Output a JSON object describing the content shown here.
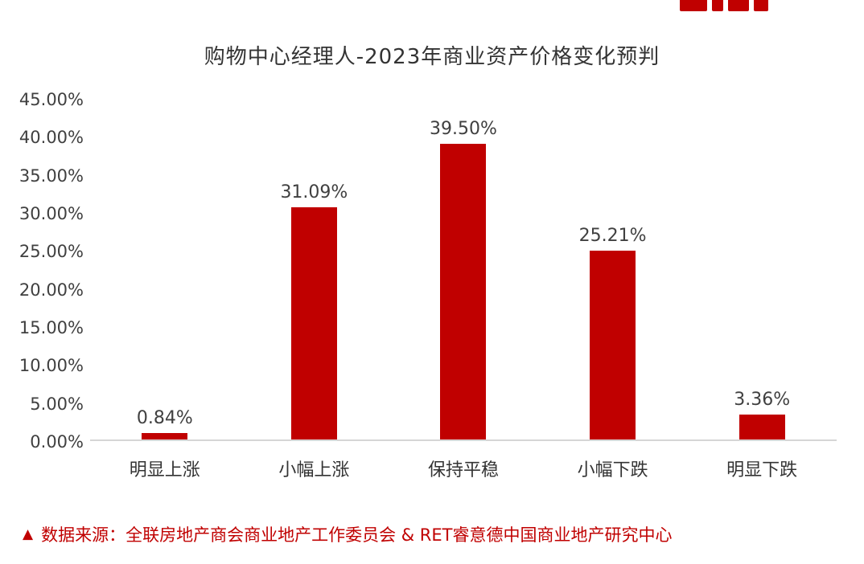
{
  "meta": {
    "bar_color": "#c00000",
    "accent_color": "#c00000"
  },
  "title": "购物中心经理人-2023年商业资产价格变化预判",
  "footer": {
    "marker": "▲",
    "text": "数据来源：全联房地产商会商业地产工作委员会 & RET睿意德中国商业地产研究中心"
  },
  "chart_data": {
    "type": "bar",
    "title": "购物中心经理人-2023年商业资产价格变化预判",
    "categories": [
      "明显上涨",
      "小幅上涨",
      "保持平稳",
      "小幅下跌",
      "明显下跌"
    ],
    "values": [
      0.84,
      31.09,
      39.5,
      25.21,
      3.36
    ],
    "value_labels": [
      "0.84%",
      "31.09%",
      "39.50%",
      "25.21%",
      "3.36%"
    ],
    "xlabel": "",
    "ylabel": "",
    "ylim": [
      0,
      45
    ],
    "ytick_step": 5,
    "yticks": [
      "45.00%",
      "40.00%",
      "35.00%",
      "30.00%",
      "25.00%",
      "20.00%",
      "15.00%",
      "10.00%",
      "5.00%",
      "0.00%"
    ],
    "grid": false,
    "legend": false,
    "bar_color": "#c00000"
  }
}
